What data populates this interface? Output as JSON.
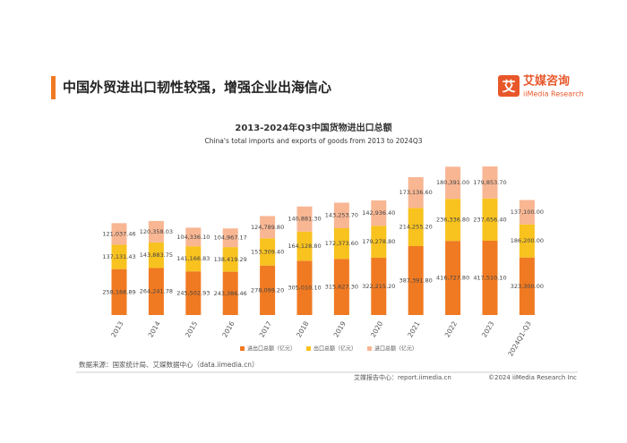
{
  "header": {
    "title": "中国外贸进出口韧性较强，增强企业出海信心",
    "logo_name": "艾媒咨询",
    "logo_sub": "iiMedia Research",
    "logo_icon": "艾"
  },
  "chart_data": {
    "type": "stacked-bar",
    "title": "2013-2024年Q3中国货物进出口总额",
    "subtitle": "China's total imports and exports of goods from 2013 to 2024Q3",
    "categories": [
      "2013",
      "2014",
      "2015",
      "2016",
      "2017",
      "2018",
      "2019",
      "2020",
      "2021",
      "2022",
      "2023",
      "2024Q1-Q3"
    ],
    "series": [
      {
        "name": "进出口总额（亿元）",
        "color": "#f07a22",
        "values": [
          258168.89,
          264241.78,
          245502.93,
          243386.46,
          278099.2,
          305010.1,
          315627.3,
          322215.2,
          387391.8,
          416727.8,
          417510.1,
          323300.0
        ],
        "value_labels": [
          "258,168.89",
          "264,241.78",
          "245,502.93",
          "243,386.46",
          "278,099.20",
          "305,010.10",
          "315,627.30",
          "322,215.20",
          "387,391.80",
          "416,727.80",
          "417,510.10",
          "323,300.00"
        ]
      },
      {
        "name": "出口总额（亿元）",
        "color": "#f8c21f",
        "values": [
          137131.43,
          143883.75,
          141166.83,
          138419.29,
          153309.4,
          164128.8,
          172373.6,
          179278.8,
          214255.2,
          236336.8,
          237656.4,
          186200.0
        ],
        "value_labels": [
          "137,131.43",
          "143,883.75",
          "141,166.83",
          "138,419.29",
          "153,309.40",
          "164,128.80",
          "172,373.60",
          "179,278.80",
          "214,255.20",
          "236,336.80",
          "237,656.40",
          "186,200.00"
        ]
      },
      {
        "name": "进口总额（亿元）",
        "color": "#f8b693",
        "values": [
          121037.46,
          120358.03,
          104336.1,
          104967.17,
          124789.8,
          140881.3,
          143253.7,
          142936.4,
          173136.6,
          180391.0,
          179853.7,
          137100.0
        ],
        "value_labels": [
          "121,037.46",
          "120,358.03",
          "104,336.10",
          "104,967.17",
          "124,789.80",
          "140,881.30",
          "143,253.70",
          "142,936.40",
          "173,136.60",
          "180,391.00",
          "179,853.70",
          "137,100.00"
        ]
      }
    ]
  },
  "footer": {
    "source": "数据来源：国家统计局、艾媒数据中心（data.iimedia.cn）",
    "report_center": "艾媒报告中心：report.iimedia.cn",
    "copyright": "©2024  iiMedia Research  Inc"
  }
}
